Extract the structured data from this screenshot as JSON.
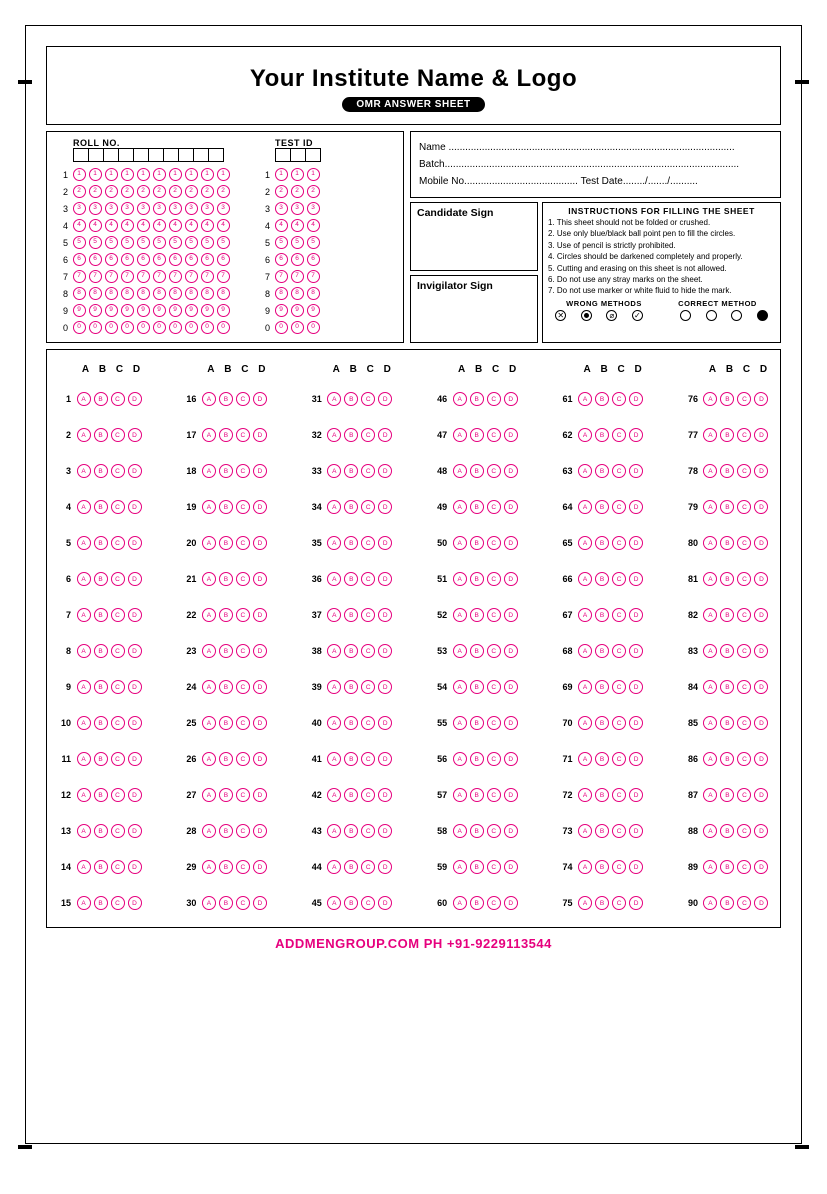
{
  "header": {
    "title": "Your Institute Name & Logo",
    "subtitle": "OMR ANSWER SHEET"
  },
  "roll": {
    "label": "ROLL NO.",
    "columns": 10,
    "digits": [
      "1",
      "2",
      "3",
      "4",
      "5",
      "6",
      "7",
      "8",
      "9",
      "0"
    ]
  },
  "testid": {
    "label": "TEST ID",
    "columns": 3,
    "digits": [
      "1",
      "2",
      "3",
      "4",
      "5",
      "6",
      "7",
      "8",
      "9",
      "0"
    ]
  },
  "info": {
    "name_label": "Name",
    "batch_label": "Batch",
    "mobile_label": "Mobile No.",
    "testdate_label": "Test Date",
    "date_sep": "/"
  },
  "signs": {
    "candidate": "Candidate Sign",
    "invigilator": "Invigilator Sign"
  },
  "instructions": {
    "title": "INSTRUCTIONS FOR FILLING THE SHEET",
    "items": [
      "1. This sheet should not be folded or crushed.",
      "2. Use only blue/black ball point pen to fill the circles.",
      "3. Use of pencil is strictly prohibited.",
      "4. Circles should be darkened completely and properly.",
      "5. Cutting and erasing on this sheet is not allowed.",
      "6. Do not use any stray marks on the sheet.",
      "7. Do not use marker or white fluid to hide the mark."
    ],
    "wrong_label": "WRONG METHODS",
    "correct_label": "CORRECT METHOD"
  },
  "answers": {
    "options": [
      "A",
      "B",
      "C",
      "D"
    ],
    "columns": 6,
    "rows_per_col": 15,
    "total": 90
  },
  "bubble_color": "#e6007e",
  "footer": "ADDMENGROUP.COM   PH +91-9229113544"
}
